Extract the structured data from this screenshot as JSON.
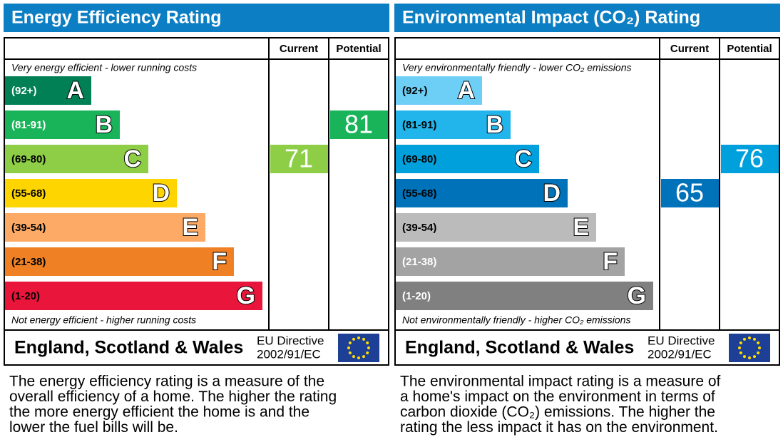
{
  "panels": [
    {
      "title": "Energy Efficiency Rating",
      "header_current": "Current",
      "header_potential": "Potential",
      "top_text": "Very energy efficient - lower running costs",
      "bottom_text": "Not energy efficient - higher running costs",
      "bands": [
        {
          "range": "(92+)",
          "letter": "A",
          "color": "#008054",
          "text_color": "#ffffff"
        },
        {
          "range": "(81-91)",
          "letter": "B",
          "color": "#19b459",
          "text_color": "#ffffff"
        },
        {
          "range": "(69-80)",
          "letter": "C",
          "color": "#8dce46",
          "text_color": "#000000"
        },
        {
          "range": "(55-68)",
          "letter": "D",
          "color": "#ffd500",
          "text_color": "#000000"
        },
        {
          "range": "(39-54)",
          "letter": "E",
          "color": "#fcaa65",
          "text_color": "#000000"
        },
        {
          "range": "(21-38)",
          "letter": "F",
          "color": "#ef8023",
          "text_color": "#000000"
        },
        {
          "range": "(1-20)",
          "letter": "G",
          "color": "#e9153b",
          "text_color": "#000000"
        }
      ],
      "current": 71,
      "potential": 81,
      "region": "England, Scotland & Wales",
      "directive_1": "EU Directive",
      "directive_2": "2002/91/EC",
      "description": [
        "The energy efficiency rating is a measure of the",
        "overall efficiency of a home. The higher the rating",
        "the more energy efficient the home is and the",
        "lower the fuel bills will be."
      ]
    },
    {
      "title": "Environmental Impact (CO₂) Rating",
      "header_current": "Current",
      "header_potential": "Potential",
      "top_text": "Very environmentally friendly - lower CO₂ emissions",
      "bottom_text": "Not environmentally friendly - higher CO₂ emissions",
      "bands": [
        {
          "range": "(92+)",
          "letter": "A",
          "color": "#6dcff6",
          "text_color": "#000000"
        },
        {
          "range": "(81-91)",
          "letter": "B",
          "color": "#22b5ec",
          "text_color": "#000000"
        },
        {
          "range": "(69-80)",
          "letter": "C",
          "color": "#00a0dc",
          "text_color": "#000000"
        },
        {
          "range": "(55-68)",
          "letter": "D",
          "color": "#0072b9",
          "text_color": "#000000"
        },
        {
          "range": "(39-54)",
          "letter": "E",
          "color": "#bbbbbb",
          "text_color": "#000000"
        },
        {
          "range": "(21-38)",
          "letter": "F",
          "color": "#a3a3a3",
          "text_color": "#ffffff"
        },
        {
          "range": "(1-20)",
          "letter": "G",
          "color": "#808080",
          "text_color": "#ffffff"
        }
      ],
      "current": 65,
      "potential": 76,
      "region": "England, Scotland & Wales",
      "directive_1": "EU Directive",
      "directive_2": "2002/91/EC",
      "description": [
        "The environmental impact rating is a measure of",
        "a home's impact on the environment in terms of",
        "carbon dioxide (CO₂) emissions. The higher the",
        "rating the less impact it has on the environment."
      ]
    }
  ]
}
